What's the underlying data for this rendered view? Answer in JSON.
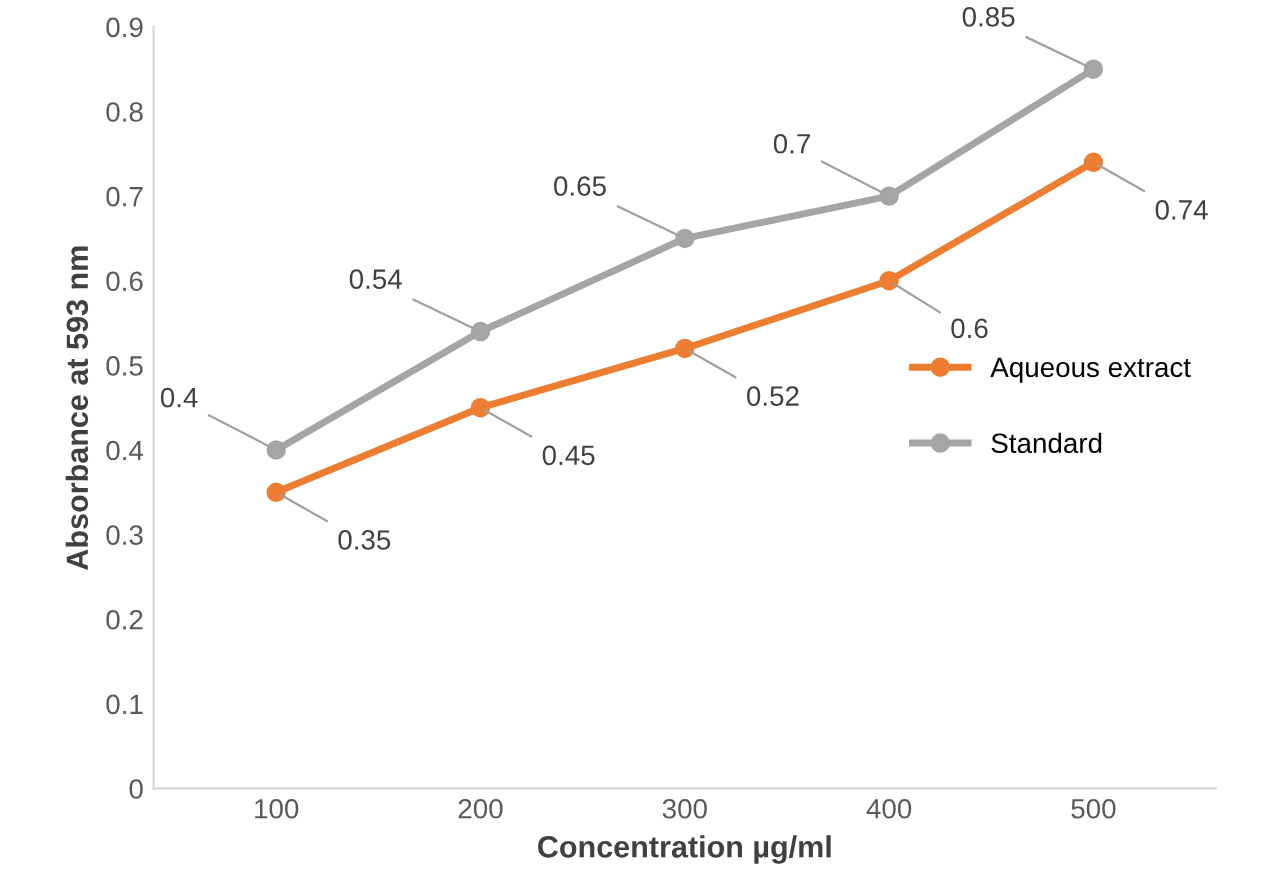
{
  "chart_data": {
    "type": "line",
    "xlabel": "Concentration µg/ml",
    "ylabel": "Absorbance at 593 nm",
    "categories": [
      "100",
      "200",
      "300",
      "400",
      "500"
    ],
    "series": [
      {
        "name": "Aqueous extract",
        "color": "#ed7d31",
        "values": [
          0.35,
          0.45,
          0.52,
          0.6,
          0.74
        ]
      },
      {
        "name": "Standard",
        "color": "#a5a5a5",
        "values": [
          0.4,
          0.54,
          0.65,
          0.7,
          0.85
        ]
      }
    ],
    "ylim": [
      0,
      0.9
    ],
    "yticks": [
      0,
      0.1,
      0.2,
      0.3,
      0.4,
      0.5,
      0.6,
      0.7,
      0.8,
      0.9
    ],
    "grid": false,
    "legend": "right",
    "marker": "circle",
    "line_style": "solid",
    "data_labels": true
  }
}
